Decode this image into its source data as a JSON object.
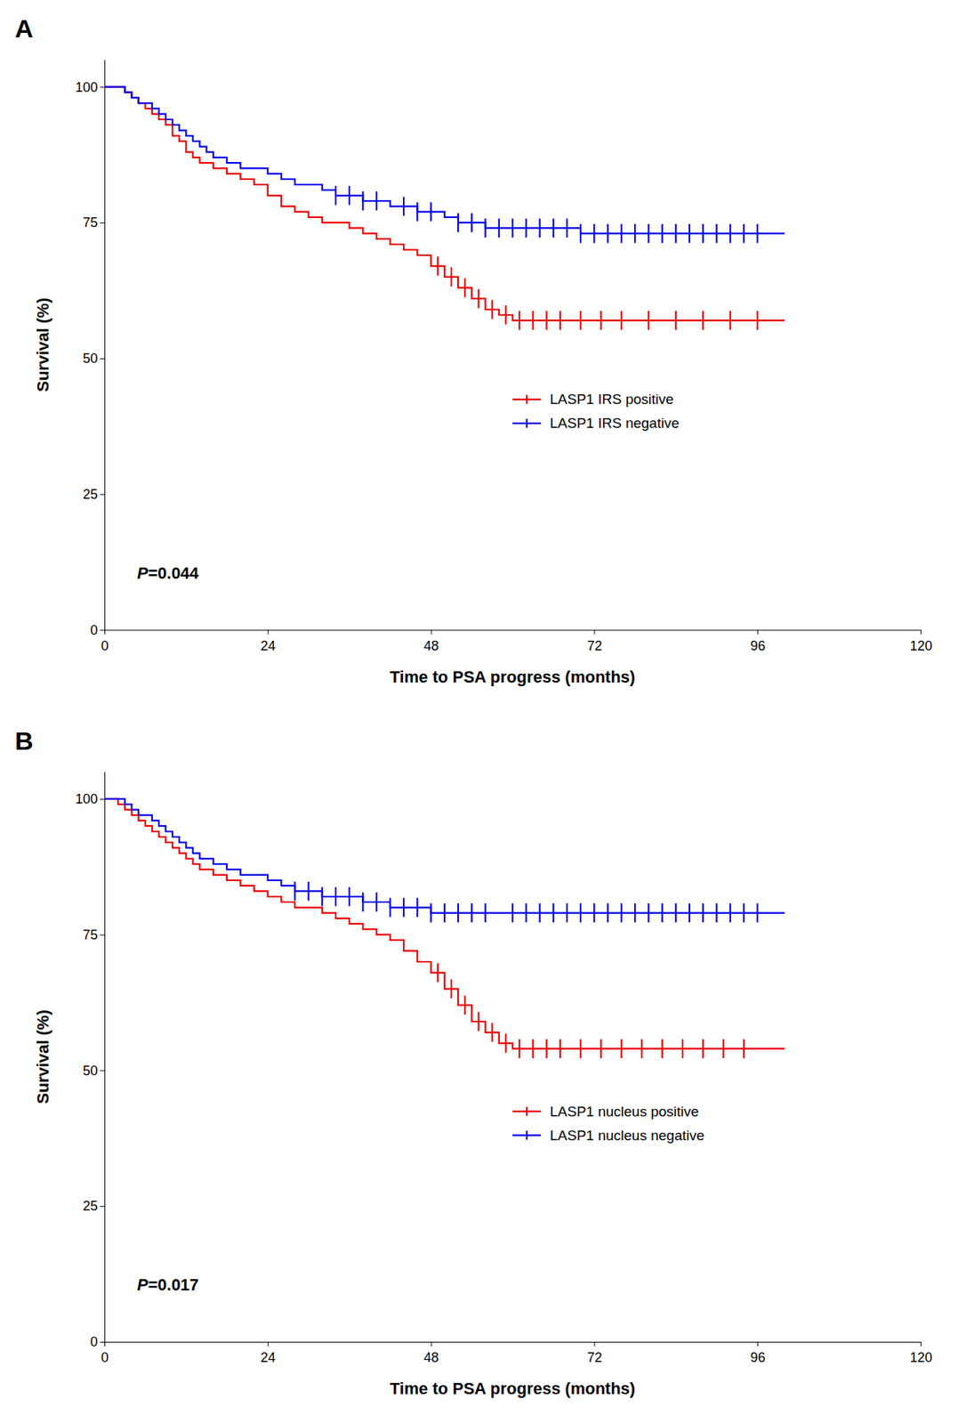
{
  "chart_data": [
    {
      "type": "step",
      "title": "A",
      "x_label": "Time to PSA progress (months)",
      "y_label": "Survival (%)",
      "xlim": [
        0,
        120
      ],
      "ylim": [
        0,
        105
      ],
      "xticks": [
        0,
        24,
        48,
        72,
        96,
        120
      ],
      "yticks": [
        0,
        25,
        50,
        75,
        100
      ],
      "grid": false,
      "legend": "lower right",
      "annotations": [
        "P",
        "=0.044"
      ],
      "series": [
        {
          "name": "LASP1 IRS positive",
          "color": "#EE0000",
          "x": [
            0,
            3,
            4,
            5,
            6,
            7,
            8,
            9,
            10,
            11,
            12,
            13,
            14,
            16,
            18,
            20,
            22,
            24,
            26,
            28,
            30,
            32,
            34,
            36,
            38,
            40,
            42,
            44,
            46,
            48,
            50,
            52,
            54,
            56,
            58,
            60,
            62,
            64,
            66,
            68,
            70,
            72,
            74,
            76,
            78,
            80,
            82,
            84,
            86,
            88,
            90,
            92,
            94,
            96,
            100
          ],
          "values": [
            100,
            99,
            98,
            97,
            96,
            95,
            94,
            93,
            91,
            90,
            88,
            87,
            86,
            85,
            84,
            83,
            82,
            80,
            78,
            77,
            76,
            75,
            75,
            74,
            73,
            72,
            71,
            70,
            69,
            67,
            65,
            63,
            61,
            59,
            58,
            57,
            57,
            57,
            57,
            57,
            57,
            57,
            57,
            57,
            57,
            57,
            57,
            57,
            57,
            57,
            57,
            57,
            57,
            57,
            57
          ],
          "censor_x": [
            49,
            51,
            53,
            55,
            57,
            59,
            61,
            63,
            65,
            67,
            70,
            73,
            76,
            80,
            84,
            88,
            92,
            96
          ],
          "censor_values": [
            67,
            65,
            63,
            61,
            59,
            58,
            57,
            57,
            57,
            57,
            57,
            57,
            57,
            57,
            57,
            57,
            57,
            57
          ]
        },
        {
          "name": "LASP1 IRS negative",
          "color": "#0000EE",
          "x": [
            0,
            2,
            3,
            4,
            5,
            6,
            7,
            8,
            9,
            10,
            11,
            12,
            13,
            14,
            15,
            16,
            18,
            20,
            22,
            24,
            26,
            28,
            30,
            32,
            34,
            36,
            38,
            40,
            42,
            44,
            46,
            48,
            50,
            52,
            54,
            56,
            58,
            60,
            62,
            64,
            66,
            68,
            70,
            72,
            74,
            76,
            78,
            80,
            82,
            84,
            86,
            88,
            90,
            92,
            94,
            96,
            100
          ],
          "values": [
            100,
            100,
            99,
            98,
            97,
            97,
            96,
            95,
            94,
            93,
            92,
            91,
            90,
            89,
            88,
            87,
            86,
            85,
            85,
            84,
            83,
            82,
            82,
            81,
            80,
            80,
            79,
            79,
            78,
            78,
            77,
            77,
            76,
            75,
            75,
            74,
            74,
            74,
            74,
            74,
            74,
            74,
            73,
            73,
            73,
            73,
            73,
            73,
            73,
            73,
            73,
            73,
            73,
            73,
            73,
            73,
            73
          ],
          "censor_x": [
            34,
            36,
            38,
            40,
            44,
            46,
            48,
            52,
            54,
            56,
            58,
            60,
            62,
            64,
            66,
            68,
            70,
            72,
            74,
            76,
            78,
            80,
            82,
            84,
            86,
            88,
            90,
            92,
            94,
            96
          ],
          "censor_values": [
            80,
            80,
            79,
            79,
            78,
            77,
            77,
            75,
            75,
            74,
            74,
            74,
            74,
            74,
            74,
            74,
            73,
            73,
            73,
            73,
            73,
            73,
            73,
            73,
            73,
            73,
            73,
            73,
            73,
            73
          ]
        }
      ]
    },
    {
      "type": "step",
      "title": "B",
      "x_label": "Time to PSA progress (months)",
      "y_label": "Survival (%)",
      "xlim": [
        0,
        120
      ],
      "ylim": [
        0,
        105
      ],
      "xticks": [
        0,
        24,
        48,
        72,
        96,
        120
      ],
      "yticks": [
        0,
        25,
        50,
        75,
        100
      ],
      "grid": false,
      "legend": "lower right",
      "annotations": [
        "P",
        "=0.017"
      ],
      "series": [
        {
          "name": "LASP1 nucleus positive",
          "color": "#EE0000",
          "x": [
            0,
            2,
            3,
            4,
            5,
            6,
            7,
            8,
            9,
            10,
            11,
            12,
            13,
            14,
            16,
            18,
            20,
            22,
            24,
            26,
            28,
            30,
            32,
            34,
            36,
            38,
            40,
            42,
            44,
            46,
            48,
            50,
            52,
            54,
            56,
            58,
            60,
            62,
            64,
            66,
            68,
            70,
            72,
            74,
            76,
            78,
            80,
            82,
            84,
            86,
            88,
            90,
            92,
            94,
            96,
            100
          ],
          "values": [
            100,
            99,
            98,
            97,
            96,
            95,
            94,
            93,
            92,
            91,
            90,
            89,
            88,
            87,
            86,
            85,
            84,
            83,
            82,
            81,
            80,
            80,
            79,
            78,
            77,
            76,
            75,
            74,
            72,
            70,
            68,
            65,
            62,
            59,
            57,
            55,
            54,
            54,
            54,
            54,
            54,
            54,
            54,
            54,
            54,
            54,
            54,
            54,
            54,
            54,
            54,
            54,
            54,
            54,
            54,
            54
          ],
          "censor_x": [
            49,
            51,
            53,
            55,
            57,
            59,
            61,
            63,
            65,
            67,
            70,
            73,
            76,
            79,
            82,
            85,
            88,
            91,
            94
          ],
          "censor_values": [
            68,
            65,
            62,
            59,
            57,
            55,
            54,
            54,
            54,
            54,
            54,
            54,
            54,
            54,
            54,
            54,
            54,
            54,
            54
          ]
        },
        {
          "name": "LASP1 nucleus negative",
          "color": "#0000EE",
          "x": [
            0,
            2,
            3,
            4,
            5,
            6,
            7,
            8,
            9,
            10,
            11,
            12,
            13,
            14,
            16,
            18,
            20,
            22,
            24,
            26,
            28,
            30,
            32,
            34,
            36,
            38,
            40,
            42,
            44,
            46,
            48,
            50,
            52,
            54,
            56,
            58,
            60,
            62,
            64,
            66,
            68,
            70,
            72,
            74,
            76,
            78,
            80,
            82,
            84,
            86,
            88,
            90,
            92,
            94,
            96,
            100
          ],
          "values": [
            100,
            100,
            99,
            98,
            97,
            97,
            96,
            95,
            94,
            93,
            92,
            91,
            90,
            89,
            88,
            87,
            86,
            86,
            85,
            84,
            83,
            83,
            82,
            82,
            82,
            81,
            81,
            80,
            80,
            80,
            79,
            79,
            79,
            79,
            79,
            79,
            79,
            79,
            79,
            79,
            79,
            79,
            79,
            79,
            79,
            79,
            79,
            79,
            79,
            79,
            79,
            79,
            79,
            79,
            79,
            79
          ],
          "censor_x": [
            28,
            30,
            32,
            34,
            36,
            38,
            40,
            42,
            44,
            46,
            48,
            50,
            52,
            54,
            56,
            60,
            62,
            64,
            66,
            68,
            70,
            72,
            74,
            76,
            78,
            80,
            82,
            84,
            86,
            88,
            90,
            92,
            94,
            96
          ],
          "censor_values": [
            83,
            83,
            82,
            82,
            82,
            81,
            81,
            80,
            80,
            80,
            79,
            79,
            79,
            79,
            79,
            79,
            79,
            79,
            79,
            79,
            79,
            79,
            79,
            79,
            79,
            79,
            79,
            79,
            79,
            79,
            79,
            79,
            79,
            79
          ]
        }
      ]
    }
  ]
}
